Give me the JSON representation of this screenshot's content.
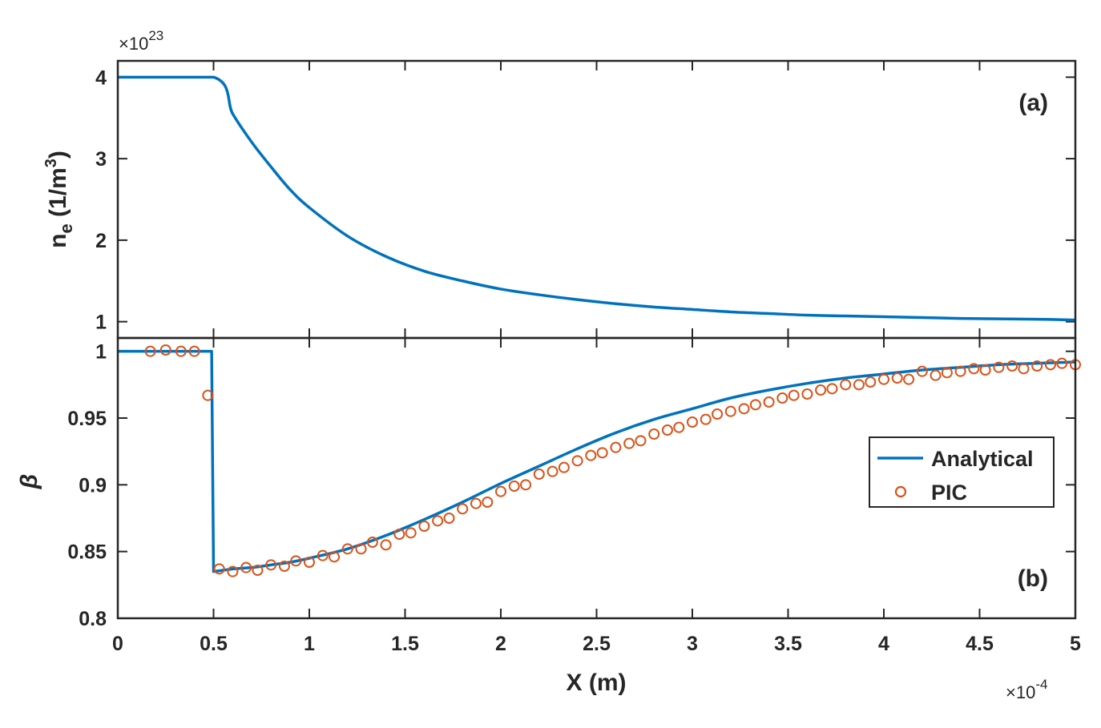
{
  "chart_data": [
    {
      "panel_label": "(a)",
      "type": "line",
      "xlim": [
        0,
        5
      ],
      "ylim": [
        0.8,
        4.2
      ],
      "y_exponent": "23",
      "yticks": [
        "1",
        "2",
        "3",
        "4"
      ],
      "ylabel": {
        "base": "n",
        "sub": "e",
        "rest": " (1/m",
        "sup": "3",
        "end": ")"
      },
      "series": [
        {
          "color": "#0072BD",
          "x": [
            0,
            0.5,
            0.6,
            0.7,
            0.8,
            0.9,
            1.0,
            1.2,
            1.4,
            1.6,
            1.8,
            2.0,
            2.2,
            2.4,
            2.6,
            2.8,
            3.0,
            3.2,
            3.4,
            3.6,
            3.8,
            4.0,
            4.2,
            4.4,
            4.6,
            4.8,
            5.0
          ],
          "y": [
            4.0,
            4.0,
            3.55,
            3.2,
            2.9,
            2.62,
            2.4,
            2.05,
            1.8,
            1.62,
            1.5,
            1.4,
            1.33,
            1.27,
            1.22,
            1.18,
            1.15,
            1.12,
            1.1,
            1.08,
            1.07,
            1.06,
            1.05,
            1.04,
            1.035,
            1.03,
            1.02
          ]
        }
      ]
    },
    {
      "panel_label": "(b)",
      "type": "line",
      "xlim": [
        0,
        5
      ],
      "ylim": [
        0.8,
        1.01
      ],
      "ylabel": "β",
      "yticks": [
        "0.8",
        "0.85",
        "0.9",
        "0.95",
        "1"
      ],
      "xticks": [
        "0",
        "0.5",
        "1",
        "1.5",
        "2",
        "2.5",
        "3",
        "3.5",
        "4",
        "4.5",
        "5"
      ],
      "xlabel": "X (m)",
      "x_exponent": "-4",
      "legend_position": "right",
      "series": [
        {
          "name": "Analytical",
          "type": "line",
          "color": "#0072BD",
          "x": [
            0,
            0.48,
            0.49,
            0.5,
            0.55,
            0.6,
            0.7,
            0.8,
            0.9,
            1.0,
            1.2,
            1.4,
            1.6,
            1.8,
            2.0,
            2.2,
            2.4,
            2.6,
            2.8,
            3.0,
            3.2,
            3.4,
            3.6,
            3.8,
            4.0,
            4.2,
            4.4,
            4.6,
            4.8,
            5.0
          ],
          "y": [
            1.0,
            1.0,
            1.0,
            0.835,
            0.836,
            0.837,
            0.838,
            0.84,
            0.842,
            0.845,
            0.852,
            0.862,
            0.874,
            0.887,
            0.901,
            0.914,
            0.927,
            0.939,
            0.949,
            0.957,
            0.965,
            0.971,
            0.976,
            0.98,
            0.983,
            0.986,
            0.988,
            0.99,
            0.991,
            0.992
          ]
        },
        {
          "name": "PIC",
          "type": "scatter",
          "color": "#D95319",
          "x": [
            0.17,
            0.25,
            0.33,
            0.4,
            0.47,
            0.53,
            0.6,
            0.67,
            0.73,
            0.8,
            0.87,
            0.93,
            1.0,
            1.07,
            1.13,
            1.2,
            1.27,
            1.33,
            1.4,
            1.47,
            1.53,
            1.6,
            1.67,
            1.73,
            1.8,
            1.87,
            1.93,
            2.0,
            2.07,
            2.13,
            2.2,
            2.27,
            2.33,
            2.4,
            2.47,
            2.53,
            2.6,
            2.67,
            2.73,
            2.8,
            2.87,
            2.93,
            3.0,
            3.07,
            3.13,
            3.2,
            3.27,
            3.33,
            3.4,
            3.47,
            3.53,
            3.6,
            3.67,
            3.73,
            3.8,
            3.87,
            3.93,
            4.0,
            4.07,
            4.13,
            4.2,
            4.27,
            4.33,
            4.4,
            4.47,
            4.53,
            4.6,
            4.67,
            4.73,
            4.8,
            4.87,
            4.93,
            5.0
          ],
          "y": [
            1.0,
            1.001,
            1.0,
            1.0,
            0.967,
            0.837,
            0.835,
            0.838,
            0.836,
            0.84,
            0.839,
            0.843,
            0.842,
            0.847,
            0.846,
            0.852,
            0.852,
            0.857,
            0.855,
            0.863,
            0.864,
            0.869,
            0.873,
            0.875,
            0.882,
            0.886,
            0.887,
            0.895,
            0.899,
            0.9,
            0.908,
            0.91,
            0.913,
            0.918,
            0.922,
            0.924,
            0.928,
            0.931,
            0.933,
            0.938,
            0.941,
            0.943,
            0.947,
            0.949,
            0.953,
            0.955,
            0.957,
            0.96,
            0.962,
            0.965,
            0.967,
            0.968,
            0.971,
            0.972,
            0.975,
            0.975,
            0.977,
            0.979,
            0.98,
            0.979,
            0.985,
            0.982,
            0.984,
            0.985,
            0.987,
            0.986,
            0.988,
            0.989,
            0.987,
            0.989,
            0.99,
            0.991,
            0.99
          ]
        }
      ]
    }
  ]
}
